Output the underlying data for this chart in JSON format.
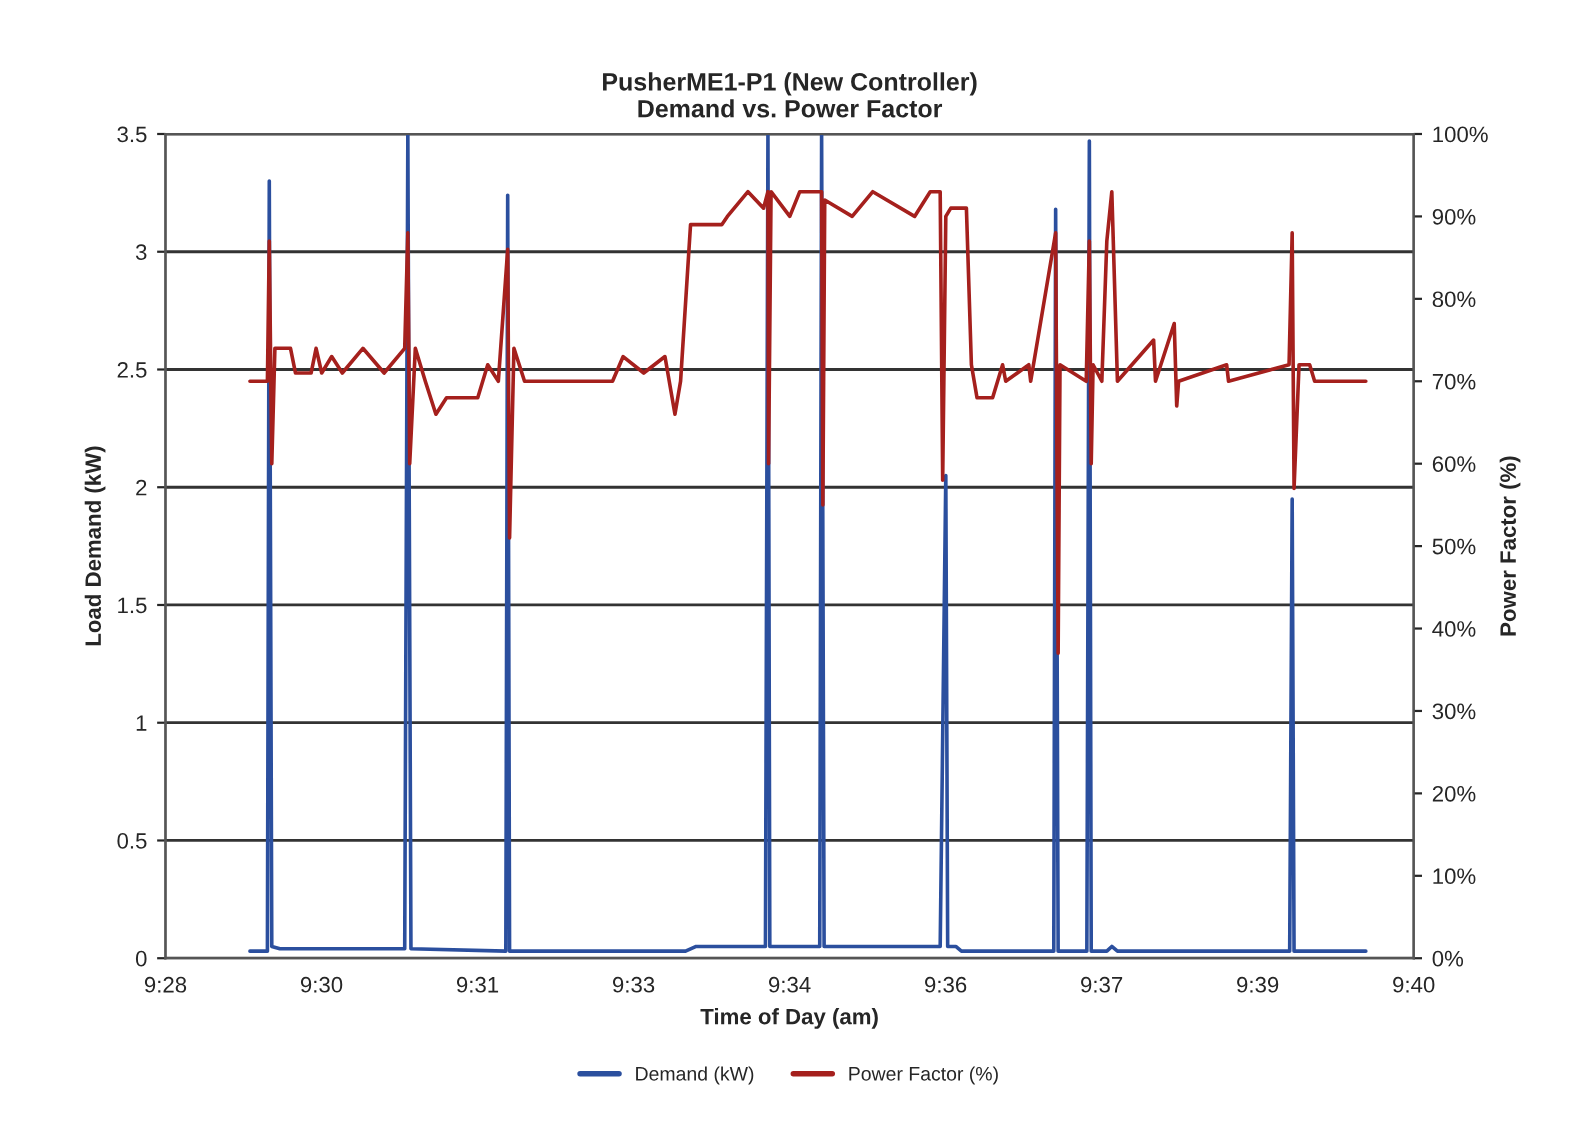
{
  "chart_data": {
    "type": "line",
    "title": "PusherME1-P1 (New Controller)\nDemand vs. Power Factor",
    "xlabel": "Time of Day (am)",
    "ylabel": "Load Demand (kW)",
    "y2label": "Power Factor (%)",
    "xlim": [
      9.466667,
      9.666667
    ],
    "xticks": [
      {
        "value": 9.466667,
        "label": "9:28"
      },
      {
        "value": 9.491667,
        "label": "9:30"
      },
      {
        "value": 9.516667,
        "label": "9:31"
      },
      {
        "value": 9.541667,
        "label": "9:33"
      },
      {
        "value": 9.566667,
        "label": "9:34"
      },
      {
        "value": 9.591667,
        "label": "9:36"
      },
      {
        "value": 9.616667,
        "label": "9:37"
      },
      {
        "value": 9.641667,
        "label": "9:39"
      },
      {
        "value": 9.666667,
        "label": "9:40"
      }
    ],
    "ylim": [
      0,
      3.5
    ],
    "yticks": [
      0,
      0.5,
      1,
      1.5,
      2,
      2.5,
      3,
      3.5
    ],
    "y2lim": [
      0,
      100
    ],
    "y2ticks": [
      {
        "value": 0,
        "label": "0%"
      },
      {
        "value": 10,
        "label": "10%"
      },
      {
        "value": 20,
        "label": "20%"
      },
      {
        "value": 30,
        "label": "30%"
      },
      {
        "value": 40,
        "label": "40%"
      },
      {
        "value": 50,
        "label": "50%"
      },
      {
        "value": 60,
        "label": "60%"
      },
      {
        "value": 70,
        "label": "70%"
      },
      {
        "value": 80,
        "label": "80%"
      },
      {
        "value": 90,
        "label": "90%"
      },
      {
        "value": 100,
        "label": "100%"
      }
    ],
    "grid": "y",
    "legend": "bottom",
    "marker": "none",
    "line_style": "solid",
    "series": [
      {
        "name": "Demand (kW)",
        "color": "#2b4f9e",
        "x": [
          9.4802,
          9.483,
          9.4833,
          9.4837,
          9.485,
          9.505,
          9.5055,
          9.506,
          9.5212,
          9.5215,
          9.5218,
          9.55,
          9.5517,
          9.5628,
          9.5632,
          9.5635,
          9.5715,
          9.5718,
          9.5722,
          9.5908,
          9.5917,
          9.592,
          9.5933,
          9.5942,
          9.609,
          9.6093,
          9.6097,
          9.6143,
          9.6147,
          9.615,
          9.6175,
          9.6183,
          9.6192,
          9.6468,
          9.6472,
          9.6475,
          9.659
        ],
        "values": [
          0.03,
          0.03,
          3.3,
          0.05,
          0.04,
          0.04,
          3.5,
          0.04,
          0.03,
          3.24,
          0.03,
          0.03,
          0.05,
          0.05,
          3.5,
          0.05,
          0.05,
          3.5,
          0.05,
          0.05,
          2.05,
          0.05,
          0.05,
          0.03,
          0.03,
          3.18,
          0.03,
          0.03,
          3.47,
          0.03,
          0.03,
          0.05,
          0.03,
          0.03,
          1.95,
          0.03,
          0.03
        ]
      },
      {
        "name": "Power Factor (%)",
        "color": "#a5201d",
        "axis": "y2",
        "x": [
          9.4802,
          9.483,
          9.4833,
          9.4837,
          9.4842,
          9.4867,
          9.4875,
          9.49,
          9.4908,
          9.4917,
          9.4933,
          9.495,
          9.4983,
          9.5017,
          9.505,
          9.5055,
          9.5058,
          9.5067,
          9.5083,
          9.51,
          9.5117,
          9.5167,
          9.5183,
          9.52,
          9.5215,
          9.5218,
          9.5225,
          9.5242,
          9.5383,
          9.54,
          9.5433,
          9.5467,
          9.5483,
          9.5492,
          9.5508,
          9.5558,
          9.5567,
          9.56,
          9.5625,
          9.5632,
          9.5633,
          9.5637,
          9.5667,
          9.5683,
          9.5718,
          9.572,
          9.5723,
          9.5767,
          9.58,
          9.5867,
          9.5892,
          9.5908,
          9.5912,
          9.5917,
          9.5925,
          9.595,
          9.5958,
          9.5967,
          9.5992,
          9.6,
          9.6008,
          9.6013,
          9.605,
          9.6053,
          9.6093,
          9.6097,
          9.61,
          9.6142,
          9.6147,
          9.615,
          9.6153,
          9.6167,
          9.6175,
          9.6183,
          9.6192,
          9.625,
          9.6253,
          9.6283,
          9.6287,
          9.629,
          9.6367,
          9.637,
          9.6467,
          9.6472,
          9.6475,
          9.6483,
          9.65,
          9.6508,
          9.659
        ],
        "values": [
          70,
          70,
          87,
          60,
          74,
          74,
          71,
          71,
          74,
          71,
          73,
          71,
          74,
          71,
          74,
          88,
          60,
          74,
          70,
          66,
          68,
          68,
          72,
          70,
          86,
          51,
          74,
          70,
          70,
          73,
          71,
          73,
          66,
          70,
          89,
          89,
          90,
          93,
          91,
          93,
          60,
          93,
          90,
          93,
          93,
          55,
          92,
          90,
          93,
          90,
          93,
          93,
          58,
          90,
          91,
          91,
          72,
          68,
          68,
          70,
          72,
          70,
          72,
          70,
          88,
          37,
          72,
          70,
          87,
          60,
          72,
          70,
          87,
          93,
          70,
          75,
          70,
          77,
          67,
          70,
          72,
          70,
          72,
          88,
          57,
          72,
          72,
          70,
          70
        ]
      }
    ]
  }
}
